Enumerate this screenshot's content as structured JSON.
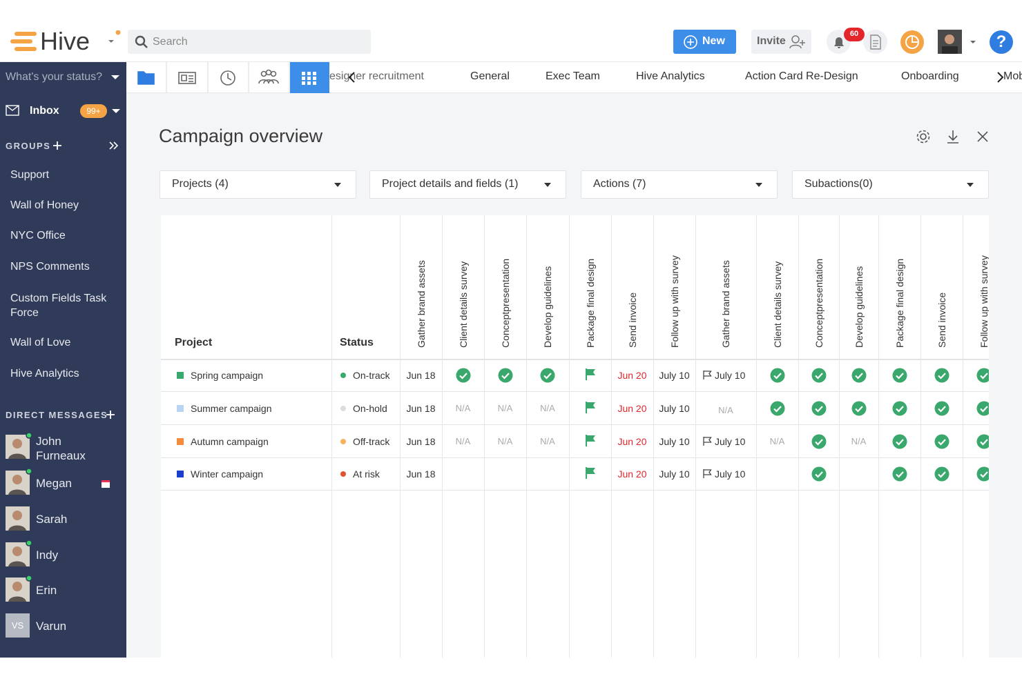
{
  "header": {
    "logo": "Hive",
    "search_placeholder": "Search",
    "new_button": "New",
    "invite_button": "Invite",
    "notification_count": "60",
    "help": "?"
  },
  "sidebar": {
    "status": "What's your status?",
    "inbox": "Inbox",
    "inbox_count": "99+",
    "groups_heading": "GROUPS",
    "groups": [
      "Support",
      "Wall of Honey",
      "NYC Office",
      "NPS Comments",
      "Custom Fields Task Force",
      "Wall of Love",
      "Hive Analytics"
    ],
    "dm_heading": "DIRECT MESSAGES",
    "direct_messages": [
      {
        "name": "John Furneaux"
      },
      {
        "name": "Megan"
      },
      {
        "name": "Sarah"
      },
      {
        "name": "Indy"
      },
      {
        "name": "Erin"
      },
      {
        "name": "Varun",
        "initials": "VS"
      }
    ]
  },
  "tabs": [
    "esigner recruitment",
    "General",
    "Exec Team",
    "Hive Analytics",
    "Action Card Re-Design",
    "Onboarding",
    "Mob"
  ],
  "panel": {
    "title": "Campaign overview",
    "filters": [
      "Projects (4)",
      "Project details and fields (1)",
      "Actions (7)",
      "Subactions(0)"
    ]
  },
  "table": {
    "headers": [
      "Project",
      "Status",
      "Gather brand assets",
      "Client details survey",
      "Conceptpresentation",
      "Develop guidelines",
      "Package final design",
      "Send invoice",
      "Follow up with survey",
      "Gather brand assets",
      "Client details survey",
      "Conceptpresentation",
      "Develop guidelines",
      "Package final design",
      "Send invoice",
      "Follow up with survey"
    ],
    "rows": [
      {
        "project": "Spring campaign",
        "color": "#3aa76d",
        "status": "On-track",
        "status_color": "#3aa76d",
        "cells": [
          "Jun 18",
          "Jun 20",
          "July 10",
          "July 10"
        ]
      },
      {
        "project": "Summer campaign",
        "color": "#b9d3f2",
        "status": "On-hold",
        "status_color": "#dddddd",
        "cells": [
          "Jun 18",
          "N/A",
          "N/A",
          "N/A",
          "Jun 20",
          "July 10",
          "N/A"
        ]
      },
      {
        "project": "Autumn campaign",
        "color": "#f58a3c",
        "status": "Off-track",
        "status_color": "#f5b45c",
        "cells": [
          "Jun 18",
          "N/A",
          "N/A",
          "N/A",
          "Jun 20",
          "July 10",
          "July 10",
          "N/A",
          "N/A"
        ]
      },
      {
        "project": "Winter campaign",
        "color": "#1a3fcf",
        "status": "At risk",
        "status_color": "#e0532e",
        "cells": [
          "Jun 18",
          "Jun 20",
          "July 10",
          "July 10"
        ]
      }
    ]
  }
}
